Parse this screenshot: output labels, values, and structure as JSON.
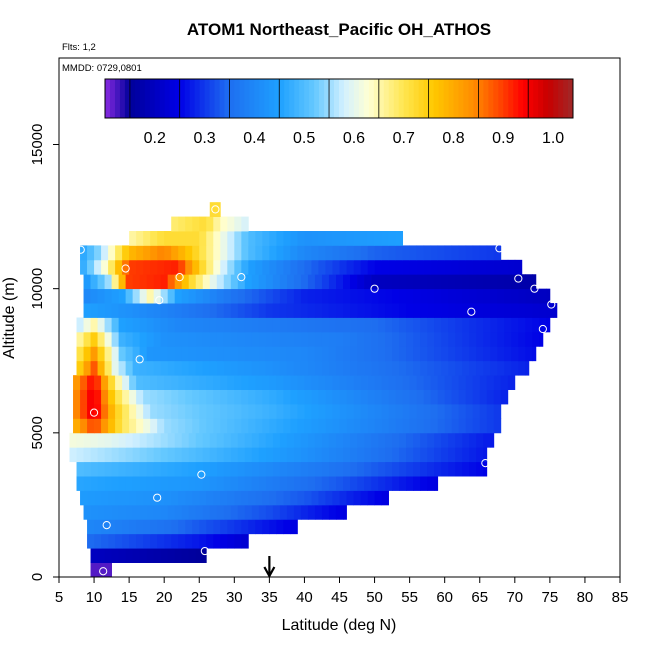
{
  "chart_data": {
    "type": "heatmap",
    "title": "ATOM1 Northeast_Pacific OH_ATHOS",
    "subtitle_lines": [
      "Flts: 1,2",
      "MMDD: 0729,0801"
    ],
    "xlabel": "Latitude (deg N)",
    "ylabel": "Altitude (m)",
    "xlim": [
      5,
      85
    ],
    "ylim": [
      0,
      18000
    ],
    "x_ticks": [
      5,
      10,
      15,
      20,
      25,
      30,
      35,
      40,
      45,
      50,
      55,
      60,
      65,
      70,
      75,
      80,
      85
    ],
    "y_ticks": [
      0,
      5000,
      10000,
      15000
    ],
    "grid": false,
    "arrow_marker_latitude": 35,
    "colorbar": {
      "location": "top",
      "range": [
        0.1,
        1.04
      ],
      "ticks": [
        0.2,
        0.3,
        0.4,
        0.5,
        0.6,
        0.7,
        0.8,
        0.9,
        1.0
      ],
      "tick_labels": [
        "0.2",
        "0.3",
        "0.4",
        "0.5",
        "0.6",
        "0.7",
        "0.8",
        "0.9",
        "1.0"
      ],
      "stops": [
        {
          "v": 0.1,
          "c": "#8a2be2"
        },
        {
          "v": 0.15,
          "c": "#00009a"
        },
        {
          "v": 0.25,
          "c": "#0000e6"
        },
        {
          "v": 0.35,
          "c": "#1e6ef0"
        },
        {
          "v": 0.45,
          "c": "#1ea0ff"
        },
        {
          "v": 0.52,
          "c": "#64c8ff"
        },
        {
          "v": 0.58,
          "c": "#d2f0ff"
        },
        {
          "v": 0.63,
          "c": "#ffffd2"
        },
        {
          "v": 0.7,
          "c": "#ffe650"
        },
        {
          "v": 0.76,
          "c": "#ffc800"
        },
        {
          "v": 0.84,
          "c": "#ff8c00"
        },
        {
          "v": 0.9,
          "c": "#ff3c00"
        },
        {
          "v": 0.94,
          "c": "#ff0000"
        },
        {
          "v": 0.99,
          "c": "#c80000"
        },
        {
          "v": 1.04,
          "c": "#a02828"
        }
      ]
    },
    "layers": [
      {
        "y0": 0,
        "y1": 500,
        "x0": 9.5,
        "x1": 12.5,
        "profile": [
          [
            9.5,
            0.12
          ],
          [
            12.5,
            0.12
          ]
        ]
      },
      {
        "y0": 500,
        "y1": 1000,
        "x0": 9.5,
        "x1": 26,
        "profile": [
          [
            9.5,
            0.2
          ],
          [
            26,
            0.15
          ]
        ]
      },
      {
        "y0": 1000,
        "y1": 1500,
        "x0": 9,
        "x1": 32,
        "profile": [
          [
            9,
            0.35
          ],
          [
            15,
            0.32
          ],
          [
            25,
            0.27
          ],
          [
            32,
            0.22
          ]
        ]
      },
      {
        "y0": 1500,
        "y1": 2000,
        "x0": 9,
        "x1": 39,
        "profile": [
          [
            9,
            0.4
          ],
          [
            20,
            0.36
          ],
          [
            30,
            0.3
          ],
          [
            39,
            0.24
          ]
        ]
      },
      {
        "y0": 2000,
        "y1": 2500,
        "x0": 8.5,
        "x1": 46,
        "profile": [
          [
            8.5,
            0.42
          ],
          [
            20,
            0.4
          ],
          [
            35,
            0.32
          ],
          [
            46,
            0.24
          ]
        ]
      },
      {
        "y0": 2500,
        "y1": 3000,
        "x0": 8,
        "x1": 52,
        "profile": [
          [
            8,
            0.44
          ],
          [
            20,
            0.42
          ],
          [
            40,
            0.33
          ],
          [
            52,
            0.24
          ]
        ]
      },
      {
        "y0": 3000,
        "y1": 3500,
        "x0": 7.5,
        "x1": 59,
        "profile": [
          [
            7.5,
            0.46
          ],
          [
            25,
            0.43
          ],
          [
            45,
            0.33
          ],
          [
            59,
            0.24
          ]
        ]
      },
      {
        "y0": 3500,
        "y1": 4000,
        "x0": 7.5,
        "x1": 66,
        "profile": [
          [
            7.5,
            0.5
          ],
          [
            25,
            0.45
          ],
          [
            45,
            0.36
          ],
          [
            66,
            0.25
          ]
        ]
      },
      {
        "y0": 4000,
        "y1": 4500,
        "x0": 6.5,
        "x1": 66,
        "profile": [
          [
            6.5,
            0.58
          ],
          [
            20,
            0.52
          ],
          [
            40,
            0.42
          ],
          [
            66,
            0.27
          ]
        ]
      },
      {
        "y0": 4500,
        "y1": 5000,
        "x0": 6.5,
        "x1": 67,
        "profile": [
          [
            6.5,
            0.62
          ],
          [
            12,
            0.6
          ],
          [
            25,
            0.52
          ],
          [
            45,
            0.4
          ],
          [
            67,
            0.27
          ]
        ]
      },
      {
        "y0": 5000,
        "y1": 5500,
        "x0": 7,
        "x1": 68,
        "profile": [
          [
            7,
            0.78
          ],
          [
            10,
            0.9
          ],
          [
            14,
            0.7
          ],
          [
            20,
            0.55
          ],
          [
            35,
            0.47
          ],
          [
            68,
            0.3
          ]
        ]
      },
      {
        "y0": 5500,
        "y1": 6000,
        "x0": 7,
        "x1": 68,
        "profile": [
          [
            7,
            0.82
          ],
          [
            10,
            0.97
          ],
          [
            13,
            0.75
          ],
          [
            18,
            0.55
          ],
          [
            35,
            0.48
          ],
          [
            68,
            0.3
          ]
        ]
      },
      {
        "y0": 6000,
        "y1": 6500,
        "x0": 7,
        "x1": 69,
        "profile": [
          [
            7,
            0.82
          ],
          [
            10,
            0.97
          ],
          [
            13,
            0.72
          ],
          [
            17,
            0.55
          ],
          [
            35,
            0.47
          ],
          [
            69,
            0.28
          ]
        ]
      },
      {
        "y0": 6500,
        "y1": 7000,
        "x0": 7,
        "x1": 70,
        "profile": [
          [
            7,
            0.8
          ],
          [
            10,
            0.95
          ],
          [
            13,
            0.68
          ],
          [
            16,
            0.5
          ],
          [
            35,
            0.44
          ],
          [
            70,
            0.28
          ]
        ]
      },
      {
        "y0": 7000,
        "y1": 7500,
        "x0": 7.5,
        "x1": 72,
        "profile": [
          [
            7.5,
            0.72
          ],
          [
            10,
            0.88
          ],
          [
            13,
            0.6
          ],
          [
            16,
            0.48
          ],
          [
            35,
            0.42
          ],
          [
            72,
            0.28
          ]
        ]
      },
      {
        "y0": 7500,
        "y1": 8000,
        "x0": 7.5,
        "x1": 73,
        "profile": [
          [
            7.5,
            0.68
          ],
          [
            10,
            0.82
          ],
          [
            14,
            0.52
          ],
          [
            18,
            0.43
          ],
          [
            40,
            0.4
          ],
          [
            73,
            0.26
          ]
        ]
      },
      {
        "y0": 8000,
        "y1": 8500,
        "x0": 7.5,
        "x1": 74,
        "profile": [
          [
            7.5,
            0.64
          ],
          [
            10,
            0.75
          ],
          [
            14,
            0.48
          ],
          [
            20,
            0.42
          ],
          [
            45,
            0.38
          ],
          [
            74,
            0.25
          ]
        ]
      },
      {
        "y0": 8500,
        "y1": 9000,
        "x0": 7.5,
        "x1": 75,
        "profile": [
          [
            7.5,
            0.56
          ],
          [
            10,
            0.65
          ],
          [
            14,
            0.45
          ],
          [
            22,
            0.4
          ],
          [
            50,
            0.35
          ],
          [
            75,
            0.25
          ]
        ]
      },
      {
        "y0": 9000,
        "y1": 9500,
        "x0": 8.5,
        "x1": 76,
        "profile": [
          [
            8.5,
            0.45
          ],
          [
            15,
            0.42
          ],
          [
            22,
            0.38
          ],
          [
            35,
            0.3
          ],
          [
            55,
            0.25
          ],
          [
            76,
            0.22
          ]
        ]
      },
      {
        "y0": 9500,
        "y1": 10000,
        "x0": 8.5,
        "x1": 75,
        "profile": [
          [
            8.5,
            0.4
          ],
          [
            14,
            0.45
          ],
          [
            18,
            0.65
          ],
          [
            22,
            0.45
          ],
          [
            30,
            0.36
          ],
          [
            40,
            0.28
          ],
          [
            75,
            0.2
          ]
        ]
      },
      {
        "y0": 10000,
        "y1": 10500,
        "x0": 8.5,
        "x1": 73,
        "profile": [
          [
            8.5,
            0.42
          ],
          [
            12,
            0.55
          ],
          [
            15,
            0.9
          ],
          [
            20,
            0.92
          ],
          [
            24,
            0.72
          ],
          [
            27,
            0.6
          ],
          [
            32,
            0.45
          ],
          [
            42,
            0.32
          ],
          [
            50,
            0.2
          ],
          [
            73,
            0.17
          ]
        ]
      },
      {
        "y0": 10500,
        "y1": 11000,
        "x0": 8,
        "x1": 71,
        "profile": [
          [
            8,
            0.45
          ],
          [
            12,
            0.65
          ],
          [
            15,
            0.9
          ],
          [
            22,
            0.92
          ],
          [
            25,
            0.75
          ],
          [
            28,
            0.6
          ],
          [
            32,
            0.45
          ],
          [
            40,
            0.35
          ],
          [
            50,
            0.25
          ],
          [
            71,
            0.22
          ]
        ]
      },
      {
        "y0": 11000,
        "y1": 11500,
        "x0": 8,
        "x1": 68,
        "profile": [
          [
            8,
            0.45
          ],
          [
            11,
            0.55
          ],
          [
            15,
            0.78
          ],
          [
            20,
            0.85
          ],
          [
            24,
            0.75
          ],
          [
            28,
            0.62
          ],
          [
            32,
            0.5
          ],
          [
            40,
            0.4
          ],
          [
            50,
            0.34
          ],
          [
            68,
            0.3
          ]
        ]
      },
      {
        "y0": 11500,
        "y1": 12000,
        "x0": 15,
        "x1": 54,
        "profile": [
          [
            15,
            0.65
          ],
          [
            20,
            0.72
          ],
          [
            25,
            0.72
          ],
          [
            28,
            0.62
          ],
          [
            32,
            0.5
          ],
          [
            40,
            0.42
          ],
          [
            54,
            0.45
          ]
        ]
      },
      {
        "y0": 12000,
        "y1": 12500,
        "x0": 21,
        "x1": 32,
        "profile": [
          [
            21,
            0.68
          ],
          [
            26,
            0.72
          ],
          [
            28,
            0.64
          ],
          [
            32,
            0.58
          ]
        ]
      },
      {
        "y0": 12500,
        "y1": 13000,
        "x0": 26.5,
        "x1": 28,
        "profile": [
          [
            26.5,
            0.72
          ],
          [
            28,
            0.72
          ]
        ]
      }
    ],
    "flight_points": [
      {
        "x": 11.3,
        "y": 200
      },
      {
        "x": 25.8,
        "y": 900
      },
      {
        "x": 11.8,
        "y": 1800
      },
      {
        "x": 19.0,
        "y": 2750
      },
      {
        "x": 25.3,
        "y": 3550
      },
      {
        "x": 65.8,
        "y": 3950
      },
      {
        "x": 10.0,
        "y": 5700
      },
      {
        "x": 16.5,
        "y": 7550
      },
      {
        "x": 74.0,
        "y": 8600
      },
      {
        "x": 63.8,
        "y": 9200
      },
      {
        "x": 75.2,
        "y": 9450
      },
      {
        "x": 19.3,
        "y": 9600
      },
      {
        "x": 72.8,
        "y": 10000
      },
      {
        "x": 50.0,
        "y": 10000
      },
      {
        "x": 22.2,
        "y": 10400
      },
      {
        "x": 31.0,
        "y": 10400
      },
      {
        "x": 70.5,
        "y": 10350
      },
      {
        "x": 14.5,
        "y": 10700
      },
      {
        "x": 8.1,
        "y": 11350
      },
      {
        "x": 67.8,
        "y": 11400
      },
      {
        "x": 27.3,
        "y": 12750
      }
    ]
  }
}
